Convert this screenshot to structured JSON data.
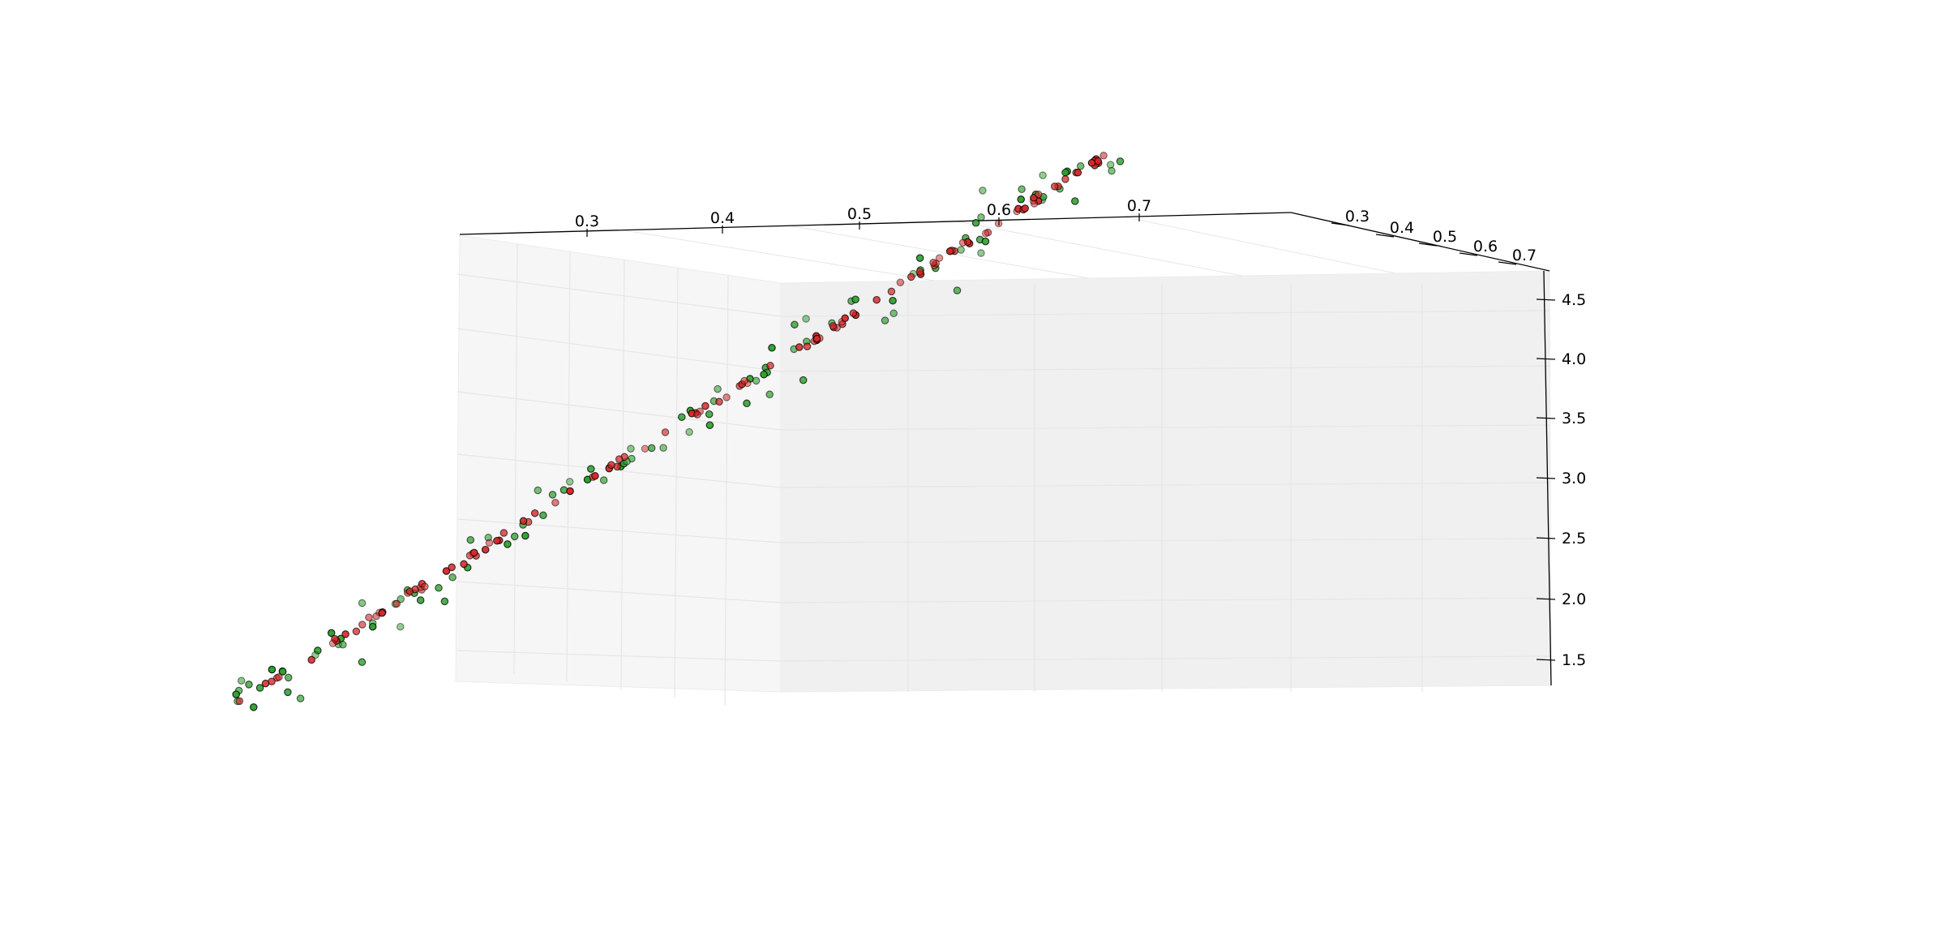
{
  "chart_data": {
    "type": "scatter",
    "projection": "3d",
    "title": "",
    "xlabel": "",
    "ylabel": "",
    "zlabel": "",
    "grid": true,
    "legend": "none",
    "x_ticks": [
      "0.3",
      "0.4",
      "0.5",
      "0.6",
      "0.7"
    ],
    "y_ticks": [
      "0.3",
      "0.4",
      "0.5",
      "0.6",
      "0.7"
    ],
    "z_ticks": [
      "1.5",
      "2.0",
      "2.5",
      "3.0",
      "3.5",
      "4.0",
      "4.5"
    ],
    "xlim": [
      0.2,
      0.8
    ],
    "ylim": [
      0.2,
      0.8
    ],
    "zlim": [
      1.25,
      4.75
    ],
    "series": [
      {
        "marker": "circle",
        "color": "#d62728",
        "edgecolor": "#000000",
        "description": "points lying on a straight line",
        "x_range": [
          0.05,
          0.95
        ],
        "z_range": [
          0.85,
          5.1
        ],
        "point_count": 170
      },
      {
        "marker": "circle",
        "color": "#2ca02c",
        "edgecolor": "#000000",
        "description": "points scattered around the same line",
        "x_range": [
          0.05,
          0.95
        ],
        "z_range": [
          0.85,
          5.1
        ],
        "point_count": 160
      }
    ],
    "colors": {
      "red_series": "#d62728",
      "green_series": "#2ca02c",
      "left_pane": "#f6f6f6",
      "back_pane": "#f0f0f0",
      "grid": "#e6e6e6",
      "axis": "#000000"
    }
  }
}
